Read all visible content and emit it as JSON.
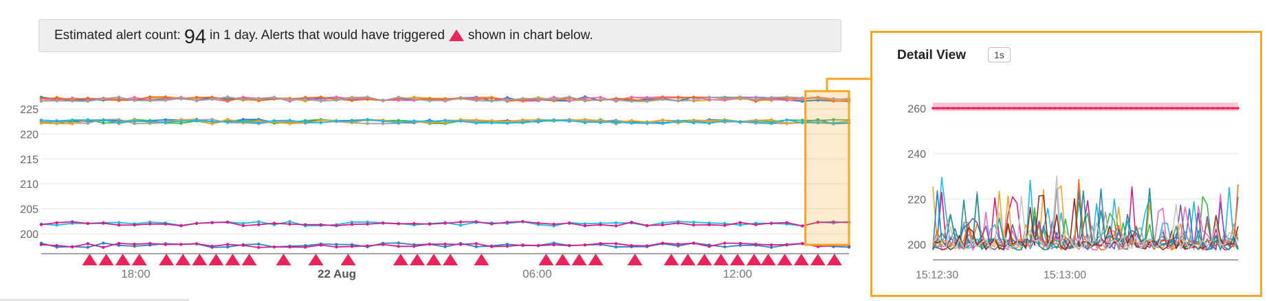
{
  "banner": {
    "prefix": "Estimated alert count:",
    "count": "94",
    "middle": "in 1 day. Alerts that would have triggered",
    "suffix": "shown in chart below.",
    "alert_color": "#e8245a"
  },
  "detail": {
    "title": "Detail View",
    "resolution": "1s",
    "border_color": "#f5a623"
  },
  "chart_data": [
    {
      "type": "line",
      "title": "",
      "xlabel": "",
      "ylabel": "",
      "x_ticks": [
        "18:00",
        "22 Aug",
        "06:00",
        "12:00"
      ],
      "x_tick_bold": [
        false,
        true,
        false,
        false
      ],
      "y_ticks": [
        200,
        205,
        210,
        215,
        220,
        225
      ],
      "ylim": [
        196,
        229
      ],
      "grid": true,
      "x_points": 53,
      "series": [
        {
          "level": 227.0,
          "colors": [
            "#f0a224",
            "#2d7fc1",
            "#e86bb6",
            "#f36c22",
            "#a0a0a0"
          ]
        },
        {
          "level": 222.5,
          "colors": [
            "#2d7fc1",
            "#38b84a",
            "#a0a0a0",
            "#f0a224",
            "#1fb7e8"
          ]
        },
        {
          "level": 202.0,
          "colors": [
            "#1fb7e8",
            "#d01f8c"
          ]
        },
        {
          "level": 197.7,
          "colors": [
            "#2d7fc1",
            "#d01f8c"
          ]
        }
      ],
      "alert_markers_count": 45,
      "highlight_window": {
        "from_fraction": 0.946,
        "to_fraction": 1.0,
        "color": "#f5a623"
      }
    },
    {
      "type": "line",
      "title": "Detail View",
      "x_ticks": [
        "15:12:30",
        "15:13:00"
      ],
      "y_ticks": [
        200,
        220,
        240,
        260
      ],
      "ylim": [
        195,
        266
      ],
      "grid": true,
      "threshold_band": {
        "from": 260,
        "to": 262.5,
        "color": "#f7c5d3"
      },
      "threshold_line": {
        "value": 260,
        "color": "#e8245a"
      },
      "series_colors": [
        "#d01f8c",
        "#1fb7e8",
        "#f0a224",
        "#38b84a",
        "#2d7fc1",
        "#e86bb6",
        "#a0a0a0",
        "#f36c22",
        "#7b52ab",
        "#1f8f8f",
        "#8b2f1f",
        "#c7c7c7"
      ],
      "noise_baseline": 199,
      "noise_peak": 232
    }
  ]
}
